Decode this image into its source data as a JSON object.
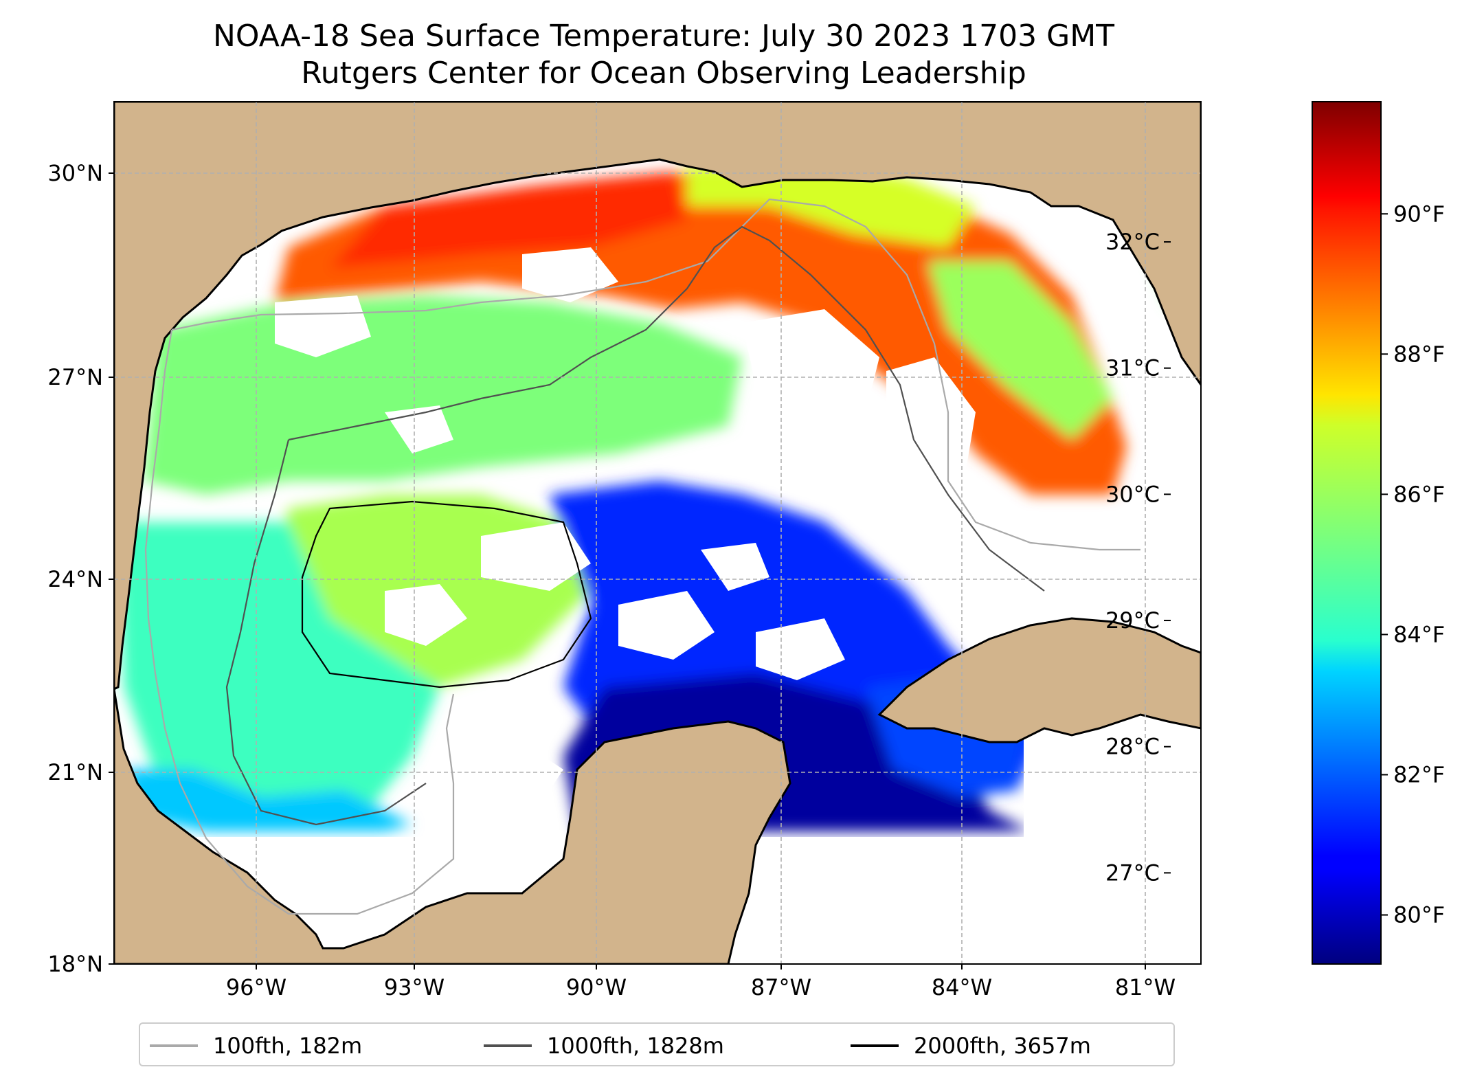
{
  "title": {
    "line1": "NOAA-18 Sea Surface Temperature: July 30 2023 1703 GMT",
    "line2": "Rutgers Center for Ocean Observing Leadership"
  },
  "map": {
    "extent": {
      "lon": [
        -98.25,
        -80.35
      ],
      "lat": [
        18,
        31
      ]
    },
    "lat_ticks": [
      {
        "value": 18,
        "label": "18°N"
      },
      {
        "value": 21,
        "label": "21°N"
      },
      {
        "value": 24,
        "label": "24°N"
      },
      {
        "value": 27,
        "label": "27°N"
      },
      {
        "value": 30,
        "label": "30°N"
      }
    ],
    "lon_ticks": [
      {
        "value": -96,
        "label": "96°W"
      },
      {
        "value": -93,
        "label": "93°W"
      },
      {
        "value": -90,
        "label": "90°W"
      },
      {
        "value": -87,
        "label": "87°W"
      },
      {
        "value": -84,
        "label": "84°W"
      },
      {
        "value": -81,
        "label": "81°W"
      }
    ],
    "gridlines": true,
    "colors": {
      "land": "#d2b48c",
      "coast": "#000000",
      "no_data": "#ffffff",
      "grid": "#b0b0b0"
    }
  },
  "colorbar": {
    "colormap": "jet",
    "range_f": [
      79.3,
      91.6
    ],
    "celsius_ticks": [
      {
        "value": 27,
        "label": "27°C"
      },
      {
        "value": 28,
        "label": "28°C"
      },
      {
        "value": 29,
        "label": "29°C"
      },
      {
        "value": 30,
        "label": "30°C"
      },
      {
        "value": 31,
        "label": "31°C"
      },
      {
        "value": 32,
        "label": "32°C"
      }
    ],
    "fahrenheit_ticks": [
      {
        "value": 80,
        "label": "80°F"
      },
      {
        "value": 82,
        "label": "82°F"
      },
      {
        "value": 84,
        "label": "84°F"
      },
      {
        "value": 86,
        "label": "86°F"
      },
      {
        "value": 88,
        "label": "88°F"
      },
      {
        "value": 90,
        "label": "90°F"
      }
    ]
  },
  "legend": [
    {
      "label": "100fth, 182m",
      "color": "#a9a9a9"
    },
    {
      "label": "1000fth, 1828m",
      "color": "#505050"
    },
    {
      "label": "2000fth, 3657m",
      "color": "#000000"
    }
  ]
}
